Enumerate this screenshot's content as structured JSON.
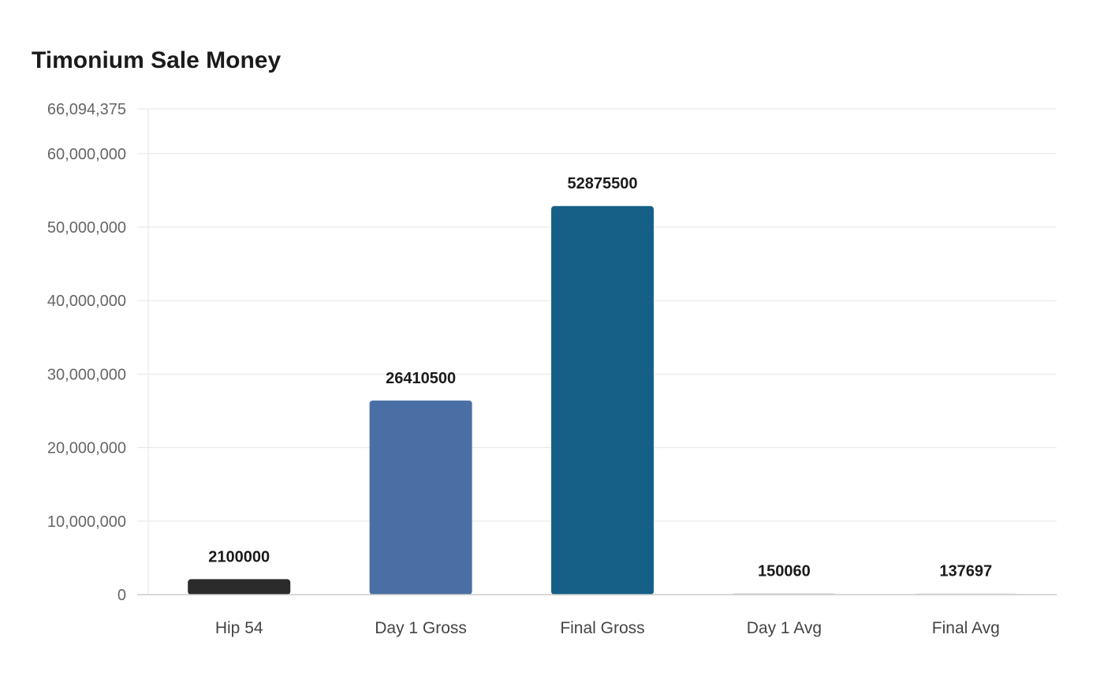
{
  "chart_data": {
    "type": "bar",
    "title": "Timonium Sale Money",
    "categories": [
      "Hip 54",
      "Day 1 Gross",
      "Final Gross",
      "Day 1 Avg",
      "Final Avg"
    ],
    "values": [
      2100000,
      26410500,
      52875500,
      150060,
      137697
    ],
    "data_labels": [
      "2100000",
      "26410500",
      "52875500",
      "150060",
      "137697"
    ],
    "colors": [
      "#2b2b2b",
      "#4a6fa5",
      "#166088",
      "#c9c9c9",
      "#e0e0e0"
    ],
    "ylim": [
      0,
      66094375
    ],
    "yticks": [
      0,
      10000000,
      20000000,
      30000000,
      40000000,
      50000000,
      60000000,
      66094375
    ],
    "ytick_labels": [
      "0",
      "10,000,000",
      "20,000,000",
      "30,000,000",
      "40,000,000",
      "50,000,000",
      "60,000,000",
      "66,094,375"
    ],
    "xlabel": "",
    "ylabel": "",
    "grid": true,
    "legend": "none"
  }
}
